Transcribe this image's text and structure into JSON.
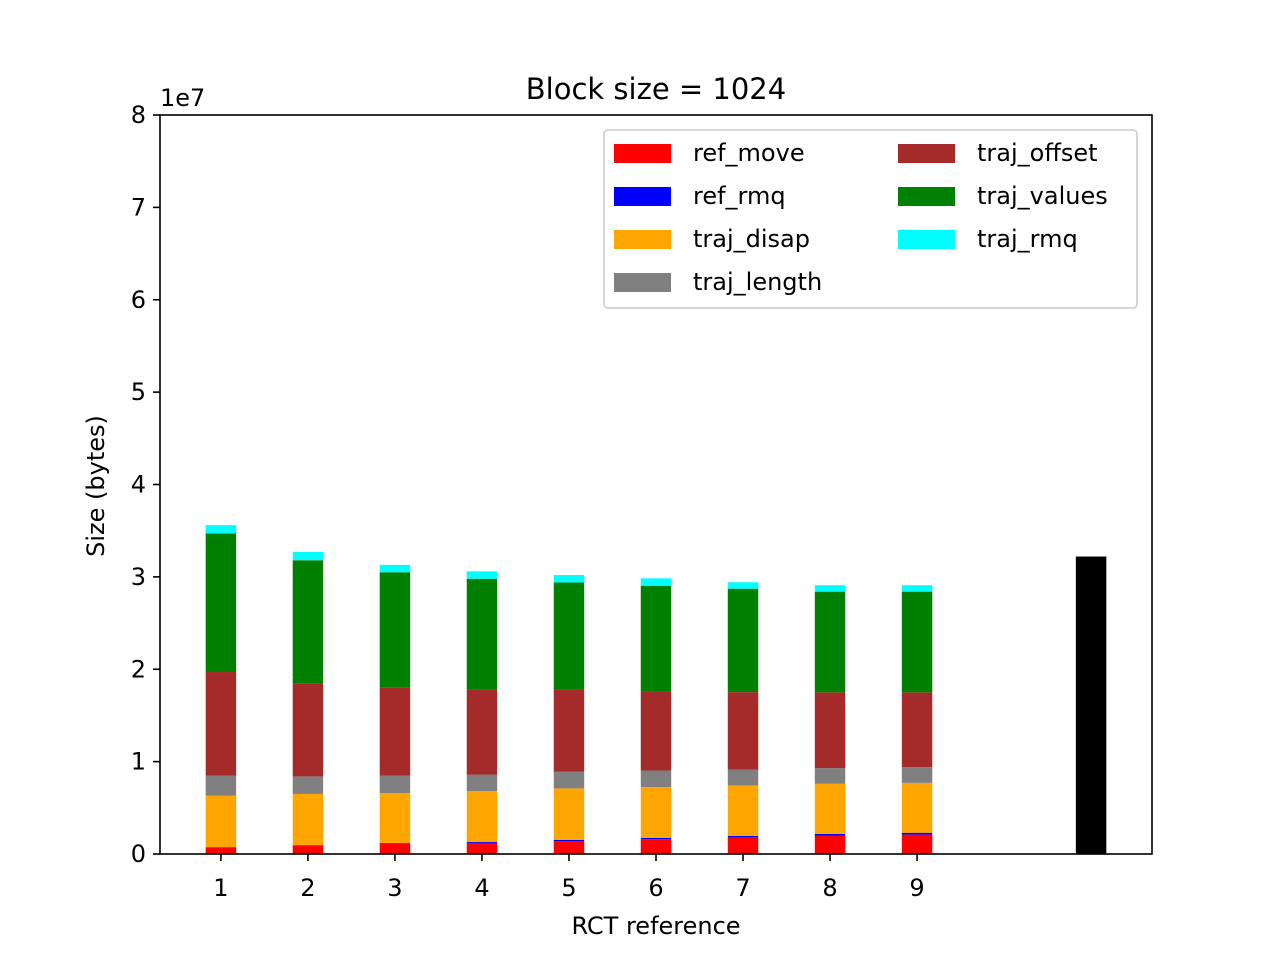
{
  "chart_data": {
    "type": "bar",
    "title": "Block size = 1024",
    "xlabel": "RCT reference",
    "ylabel": "Size (bytes)",
    "y_offset_label": "1e7",
    "ylim": [
      0,
      8
    ],
    "xlim": [
      0.3,
      11.7
    ],
    "y_ticks": [
      "0",
      "1",
      "2",
      "3",
      "4",
      "5",
      "6",
      "7",
      "8"
    ],
    "x_ticks": [
      "1",
      "2",
      "3",
      "4",
      "5",
      "6",
      "7",
      "8",
      "9"
    ],
    "categories": [
      1,
      2,
      3,
      4,
      5,
      6,
      7,
      8,
      9
    ],
    "stacked": true,
    "legend_position": "top-right",
    "series": [
      {
        "name": "ref_move",
        "color": "#ff0000",
        "values": [
          0.07,
          0.09,
          0.11,
          0.12,
          0.14,
          0.16,
          0.18,
          0.2,
          0.21
        ]
      },
      {
        "name": "ref_rmq",
        "color": "#0000ff",
        "values": [
          0.004,
          0.006,
          0.008,
          0.01,
          0.012,
          0.014,
          0.016,
          0.018,
          0.02
        ]
      },
      {
        "name": "traj_disap",
        "color": "#ffa500",
        "values": [
          0.556,
          0.554,
          0.542,
          0.55,
          0.558,
          0.55,
          0.546,
          0.542,
          0.54
        ]
      },
      {
        "name": "traj_length",
        "color": "#808080",
        "values": [
          0.22,
          0.19,
          0.19,
          0.18,
          0.18,
          0.18,
          0.17,
          0.17,
          0.17
        ]
      },
      {
        "name": "traj_offset",
        "color": "#a52a2a",
        "values": [
          1.12,
          1.01,
          0.95,
          0.92,
          0.89,
          0.86,
          0.84,
          0.82,
          0.81
        ]
      },
      {
        "name": "traj_values",
        "color": "#008000",
        "values": [
          1.5,
          1.33,
          1.25,
          1.2,
          1.16,
          1.14,
          1.12,
          1.09,
          1.09
        ]
      },
      {
        "name": "traj_rmq",
        "color": "#00ffff",
        "values": [
          0.09,
          0.09,
          0.08,
          0.08,
          0.08,
          0.08,
          0.07,
          0.07,
          0.07
        ]
      }
    ],
    "reference_bar": {
      "x": 11,
      "value": 3.22,
      "color": "#000000"
    }
  }
}
